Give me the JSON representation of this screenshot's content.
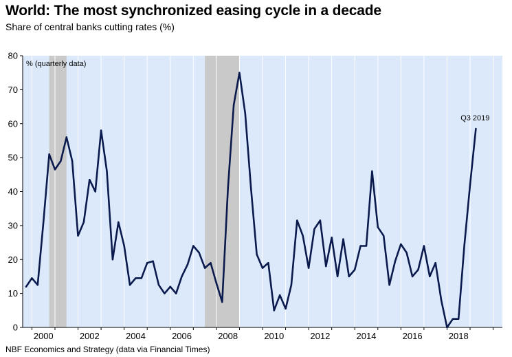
{
  "title": "World: The most synchronized easing cycle in a decade",
  "subtitle": "Share of central banks cutting rates (%)",
  "source": "NBF Economics and Strategy (data via Financial Times)",
  "colors": {
    "plot_background": "#dbe9fb",
    "recession_shade": "#c9c9c9",
    "line": "#0b1a4d",
    "gridline": "#ffffff"
  },
  "chart_data": {
    "type": "line",
    "title": "World: The most synchronized easing cycle in a decade",
    "subtitle": "Share of central banks cutting rates (%)",
    "unit_note": "% (quarterly data)",
    "xlim": [
      1999.6,
      2020.4
    ],
    "ylim": [
      0,
      80
    ],
    "y_ticks": [
      "0",
      "10",
      "20",
      "30",
      "40",
      "50",
      "60",
      "70",
      "80"
    ],
    "x_ticks": [
      "2000",
      "2002",
      "2004",
      "2006",
      "2008",
      "2010",
      "2012",
      "2014",
      "2016",
      "2018"
    ],
    "grid": "vertical",
    "shaded_periods": [
      {
        "start": 2000.75,
        "end": 2001.5
      },
      {
        "start": 2007.5,
        "end": 2009.0
      }
    ],
    "annotation": {
      "text": "Q3 2019",
      "x": 2019.25,
      "y": 58.5
    },
    "series": [
      {
        "x": [
          1999.75,
          2000.0,
          2000.25,
          2000.5,
          2000.75,
          2001.0,
          2001.25,
          2001.5,
          2001.75,
          2002.0,
          2002.25,
          2002.5,
          2002.75,
          2003.0,
          2003.25,
          2003.5,
          2003.75,
          2004.0,
          2004.25,
          2004.5,
          2004.75,
          2005.0,
          2005.25,
          2005.5,
          2005.75,
          2006.0,
          2006.25,
          2006.5,
          2006.75,
          2007.0,
          2007.25,
          2007.5,
          2007.75,
          2008.0,
          2008.25,
          2008.5,
          2008.75,
          2009.0,
          2009.25,
          2009.5,
          2009.75,
          2010.0,
          2010.25,
          2010.5,
          2010.75,
          2011.0,
          2011.25,
          2011.5,
          2011.75,
          2012.0,
          2012.25,
          2012.5,
          2012.75,
          2013.0,
          2013.25,
          2013.5,
          2013.75,
          2014.0,
          2014.25,
          2014.5,
          2014.75,
          2015.0,
          2015.25,
          2015.5,
          2015.75,
          2016.0,
          2016.25,
          2016.5,
          2016.75,
          2017.0,
          2017.25,
          2017.5,
          2017.75,
          2018.0,
          2018.25,
          2018.5,
          2018.75,
          2019.0,
          2019.25
        ],
        "values": [
          12,
          14.5,
          12.5,
          31,
          51,
          46.5,
          49,
          56,
          49,
          27,
          31,
          43.5,
          40,
          58,
          46,
          20,
          31,
          24,
          12.5,
          14.5,
          14.5,
          19,
          19.5,
          12.5,
          10,
          12,
          10,
          15,
          18.5,
          24,
          22,
          17.5,
          19,
          13,
          7.5,
          41,
          65.5,
          75,
          63,
          41,
          21.5,
          17.5,
          19,
          5,
          9.5,
          5.5,
          12.5,
          31.5,
          27,
          17.5,
          29,
          31.5,
          18,
          26.5,
          15,
          26,
          15,
          17,
          24,
          24,
          46,
          29.5,
          27,
          12.5,
          19.5,
          24.5,
          22,
          15,
          17,
          24,
          15,
          19,
          8,
          0,
          2.5,
          2.5,
          24,
          42,
          58.5
        ]
      }
    ]
  }
}
